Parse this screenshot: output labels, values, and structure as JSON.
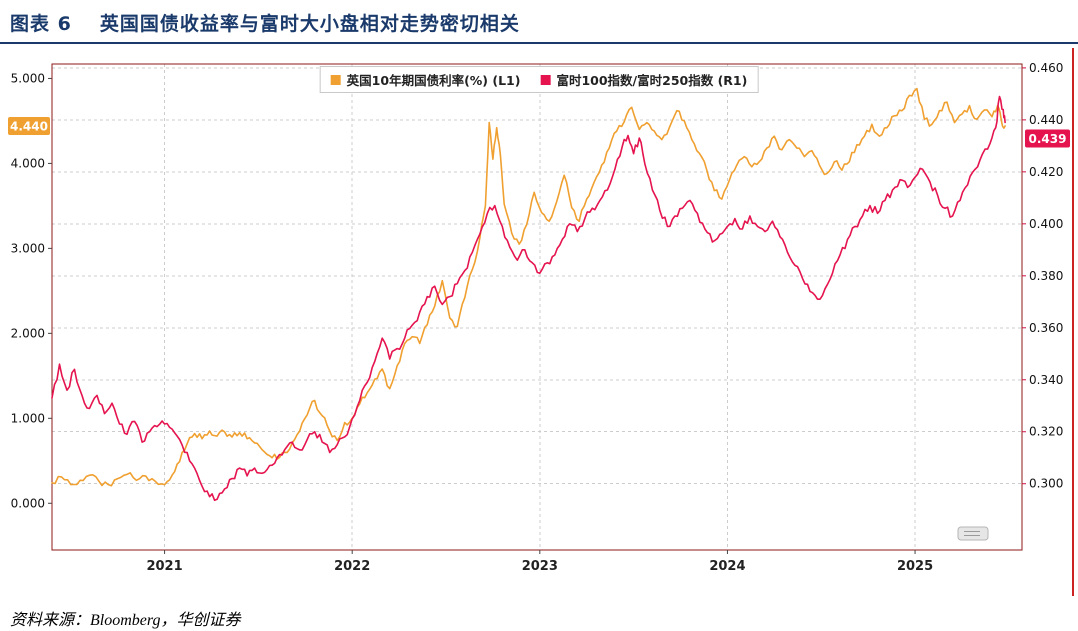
{
  "header": {
    "figure_label": "图表 6",
    "title": "英国国债收益率与富时大小盘相对走势密切相关",
    "accent_color": "#1a3a6b"
  },
  "footer": {
    "source": "资料来源：Bloomberg，华创证券"
  },
  "chart_data": {
    "type": "line",
    "title": "英国国债收益率与富时大小盘相对走势密切相关",
    "grid": "dashed",
    "legend_position": "top-center",
    "legend": [
      {
        "label": "英国10年期国债利率(%) (L1)",
        "color": "#F0A030",
        "axis": "left"
      },
      {
        "label": "富时100指数/富时250指数 (R1)",
        "color": "#E5134E",
        "axis": "right"
      }
    ],
    "x_domain": [
      2020.4,
      2025.57
    ],
    "x_ticks": [
      {
        "pos": 2021,
        "label": "2021"
      },
      {
        "pos": 2022,
        "label": "2022"
      },
      {
        "pos": 2023,
        "label": "2023"
      },
      {
        "pos": 2024,
        "label": "2024"
      },
      {
        "pos": 2025,
        "label": "2025"
      }
    ],
    "left_axis": {
      "min": -0.55,
      "max": 5.17,
      "ticks": [
        0,
        1,
        2,
        3,
        4,
        5
      ],
      "tick_labels": [
        "0.000",
        "1.000",
        "2.000",
        "3.000",
        "4.000",
        "5.000"
      ],
      "last_value": 4.44,
      "last_label": "4.440",
      "color": "#F0A030"
    },
    "right_axis": {
      "min": 0.2745,
      "max": 0.4615,
      "ticks": [
        0.3,
        0.32,
        0.34,
        0.36,
        0.38,
        0.4,
        0.42,
        0.44,
        0.46
      ],
      "tick_labels": [
        "0.300",
        "0.320",
        "0.340",
        "0.360",
        "0.380",
        "0.400",
        "0.420",
        "0.440",
        "0.460"
      ],
      "last_value": 0.439,
      "last_label": "0.439",
      "color": "#E5134E"
    },
    "series": [
      {
        "name": "英国10年期国债利率(%)",
        "axis": "left",
        "color": "#F0A030",
        "points": [
          [
            2020.4,
            0.24
          ],
          [
            2020.45,
            0.31
          ],
          [
            2020.5,
            0.22
          ],
          [
            2020.55,
            0.27
          ],
          [
            2020.6,
            0.33
          ],
          [
            2020.65,
            0.26
          ],
          [
            2020.7,
            0.22
          ],
          [
            2020.75,
            0.29
          ],
          [
            2020.8,
            0.34
          ],
          [
            2020.85,
            0.27
          ],
          [
            2020.9,
            0.32
          ],
          [
            2020.95,
            0.26
          ],
          [
            2021.0,
            0.22
          ],
          [
            2021.04,
            0.33
          ],
          [
            2021.08,
            0.49
          ],
          [
            2021.12,
            0.7
          ],
          [
            2021.16,
            0.82
          ],
          [
            2021.2,
            0.76
          ],
          [
            2021.24,
            0.85
          ],
          [
            2021.28,
            0.79
          ],
          [
            2021.32,
            0.84
          ],
          [
            2021.36,
            0.78
          ],
          [
            2021.4,
            0.83
          ],
          [
            2021.44,
            0.76
          ],
          [
            2021.48,
            0.71
          ],
          [
            2021.52,
            0.63
          ],
          [
            2021.56,
            0.56
          ],
          [
            2021.6,
            0.52
          ],
          [
            2021.64,
            0.6
          ],
          [
            2021.68,
            0.71
          ],
          [
            2021.72,
            0.85
          ],
          [
            2021.76,
            1.04
          ],
          [
            2021.8,
            1.21
          ],
          [
            2021.84,
            1.03
          ],
          [
            2021.88,
            0.85
          ],
          [
            2021.92,
            0.74
          ],
          [
            2021.96,
            0.95
          ],
          [
            2022.0,
            1.0
          ],
          [
            2022.04,
            1.17
          ],
          [
            2022.08,
            1.3
          ],
          [
            2022.12,
            1.46
          ],
          [
            2022.16,
            1.58
          ],
          [
            2022.2,
            1.35
          ],
          [
            2022.24,
            1.62
          ],
          [
            2022.28,
            1.88
          ],
          [
            2022.32,
            1.96
          ],
          [
            2022.36,
            1.88
          ],
          [
            2022.4,
            2.1
          ],
          [
            2022.44,
            2.32
          ],
          [
            2022.48,
            2.62
          ],
          [
            2022.52,
            2.18
          ],
          [
            2022.56,
            2.08
          ],
          [
            2022.6,
            2.42
          ],
          [
            2022.64,
            2.75
          ],
          [
            2022.68,
            3.12
          ],
          [
            2022.71,
            3.5
          ],
          [
            2022.73,
            4.48
          ],
          [
            2022.75,
            4.05
          ],
          [
            2022.77,
            4.42
          ],
          [
            2022.79,
            4.1
          ],
          [
            2022.81,
            3.52
          ],
          [
            2022.85,
            3.18
          ],
          [
            2022.89,
            3.05
          ],
          [
            2022.93,
            3.28
          ],
          [
            2022.97,
            3.66
          ],
          [
            2023.01,
            3.42
          ],
          [
            2023.05,
            3.32
          ],
          [
            2023.09,
            3.55
          ],
          [
            2023.13,
            3.86
          ],
          [
            2023.17,
            3.48
          ],
          [
            2023.21,
            3.32
          ],
          [
            2023.25,
            3.58
          ],
          [
            2023.29,
            3.78
          ],
          [
            2023.33,
            3.98
          ],
          [
            2023.37,
            4.18
          ],
          [
            2023.41,
            4.38
          ],
          [
            2023.45,
            4.49
          ],
          [
            2023.49,
            4.66
          ],
          [
            2023.53,
            4.4
          ],
          [
            2023.57,
            4.48
          ],
          [
            2023.61,
            4.38
          ],
          [
            2023.65,
            4.28
          ],
          [
            2023.69,
            4.42
          ],
          [
            2023.73,
            4.62
          ],
          [
            2023.77,
            4.5
          ],
          [
            2023.81,
            4.28
          ],
          [
            2023.85,
            4.12
          ],
          [
            2023.89,
            3.92
          ],
          [
            2023.93,
            3.68
          ],
          [
            2023.97,
            3.58
          ],
          [
            2024.01,
            3.8
          ],
          [
            2024.05,
            3.98
          ],
          [
            2024.09,
            4.08
          ],
          [
            2024.13,
            3.96
          ],
          [
            2024.17,
            4.02
          ],
          [
            2024.21,
            4.18
          ],
          [
            2024.25,
            4.32
          ],
          [
            2024.29,
            4.16
          ],
          [
            2024.33,
            4.28
          ],
          [
            2024.37,
            4.18
          ],
          [
            2024.41,
            4.08
          ],
          [
            2024.45,
            4.15
          ],
          [
            2024.49,
            3.98
          ],
          [
            2024.53,
            3.88
          ],
          [
            2024.57,
            4.02
          ],
          [
            2024.61,
            3.92
          ],
          [
            2024.65,
            4.02
          ],
          [
            2024.69,
            4.22
          ],
          [
            2024.73,
            4.32
          ],
          [
            2024.77,
            4.46
          ],
          [
            2024.81,
            4.32
          ],
          [
            2024.85,
            4.42
          ],
          [
            2024.89,
            4.56
          ],
          [
            2024.93,
            4.62
          ],
          [
            2024.97,
            4.8
          ],
          [
            2025.01,
            4.88
          ],
          [
            2025.05,
            4.52
          ],
          [
            2025.09,
            4.46
          ],
          [
            2025.13,
            4.62
          ],
          [
            2025.17,
            4.72
          ],
          [
            2025.21,
            4.48
          ],
          [
            2025.25,
            4.58
          ],
          [
            2025.29,
            4.68
          ],
          [
            2025.33,
            4.52
          ],
          [
            2025.37,
            4.63
          ],
          [
            2025.41,
            4.55
          ],
          [
            2025.44,
            4.68
          ],
          [
            2025.46,
            4.5
          ],
          [
            2025.48,
            4.44
          ]
        ]
      },
      {
        "name": "富时100指数/富时250指数",
        "axis": "right",
        "color": "#E5134E",
        "points": [
          [
            2020.4,
            0.333
          ],
          [
            2020.44,
            0.346
          ],
          [
            2020.48,
            0.336
          ],
          [
            2020.52,
            0.344
          ],
          [
            2020.56,
            0.334
          ],
          [
            2020.6,
            0.329
          ],
          [
            2020.64,
            0.334
          ],
          [
            2020.68,
            0.327
          ],
          [
            2020.72,
            0.331
          ],
          [
            2020.76,
            0.323
          ],
          [
            2020.8,
            0.319
          ],
          [
            2020.84,
            0.324
          ],
          [
            2020.88,
            0.316
          ],
          [
            2020.92,
            0.32
          ],
          [
            2020.96,
            0.322
          ],
          [
            2021.0,
            0.323
          ],
          [
            2021.04,
            0.321
          ],
          [
            2021.08,
            0.317
          ],
          [
            2021.12,
            0.312
          ],
          [
            2021.16,
            0.306
          ],
          [
            2021.2,
            0.299
          ],
          [
            2021.24,
            0.295
          ],
          [
            2021.28,
            0.294
          ],
          [
            2021.32,
            0.298
          ],
          [
            2021.36,
            0.302
          ],
          [
            2021.4,
            0.306
          ],
          [
            2021.44,
            0.303
          ],
          [
            2021.48,
            0.306
          ],
          [
            2021.52,
            0.304
          ],
          [
            2021.56,
            0.307
          ],
          [
            2021.6,
            0.31
          ],
          [
            2021.64,
            0.313
          ],
          [
            2021.68,
            0.316
          ],
          [
            2021.72,
            0.313
          ],
          [
            2021.76,
            0.317
          ],
          [
            2021.8,
            0.32
          ],
          [
            2021.84,
            0.316
          ],
          [
            2021.88,
            0.312
          ],
          [
            2021.92,
            0.315
          ],
          [
            2021.96,
            0.318
          ],
          [
            2022.0,
            0.325
          ],
          [
            2022.04,
            0.332
          ],
          [
            2022.08,
            0.339
          ],
          [
            2022.12,
            0.347
          ],
          [
            2022.16,
            0.356
          ],
          [
            2022.2,
            0.348
          ],
          [
            2022.24,
            0.352
          ],
          [
            2022.28,
            0.356
          ],
          [
            2022.32,
            0.361
          ],
          [
            2022.36,
            0.366
          ],
          [
            2022.4,
            0.372
          ],
          [
            2022.44,
            0.376
          ],
          [
            2022.48,
            0.369
          ],
          [
            2022.52,
            0.372
          ],
          [
            2022.56,
            0.377
          ],
          [
            2022.6,
            0.382
          ],
          [
            2022.64,
            0.389
          ],
          [
            2022.68,
            0.396
          ],
          [
            2022.72,
            0.404
          ],
          [
            2022.76,
            0.407
          ],
          [
            2022.8,
            0.399
          ],
          [
            2022.84,
            0.391
          ],
          [
            2022.88,
            0.386
          ],
          [
            2022.92,
            0.39
          ],
          [
            2022.96,
            0.385
          ],
          [
            2023.0,
            0.381
          ],
          [
            2023.04,
            0.385
          ],
          [
            2023.08,
            0.388
          ],
          [
            2023.12,
            0.394
          ],
          [
            2023.16,
            0.4
          ],
          [
            2023.2,
            0.397
          ],
          [
            2023.24,
            0.402
          ],
          [
            2023.28,
            0.406
          ],
          [
            2023.32,
            0.409
          ],
          [
            2023.36,
            0.413
          ],
          [
            2023.4,
            0.421
          ],
          [
            2023.44,
            0.43
          ],
          [
            2023.47,
            0.434
          ],
          [
            2023.5,
            0.427
          ],
          [
            2023.53,
            0.433
          ],
          [
            2023.56,
            0.423
          ],
          [
            2023.6,
            0.413
          ],
          [
            2023.64,
            0.405
          ],
          [
            2023.68,
            0.399
          ],
          [
            2023.72,
            0.403
          ],
          [
            2023.76,
            0.406
          ],
          [
            2023.8,
            0.409
          ],
          [
            2023.84,
            0.404
          ],
          [
            2023.88,
            0.398
          ],
          [
            2023.92,
            0.393
          ],
          [
            2023.96,
            0.396
          ],
          [
            2024.0,
            0.399
          ],
          [
            2024.04,
            0.402
          ],
          [
            2024.08,
            0.398
          ],
          [
            2024.12,
            0.403
          ],
          [
            2024.16,
            0.399
          ],
          [
            2024.2,
            0.397
          ],
          [
            2024.24,
            0.401
          ],
          [
            2024.28,
            0.395
          ],
          [
            2024.32,
            0.389
          ],
          [
            2024.36,
            0.384
          ],
          [
            2024.4,
            0.379
          ],
          [
            2024.44,
            0.374
          ],
          [
            2024.48,
            0.371
          ],
          [
            2024.52,
            0.375
          ],
          [
            2024.56,
            0.381
          ],
          [
            2024.6,
            0.388
          ],
          [
            2024.64,
            0.394
          ],
          [
            2024.68,
            0.399
          ],
          [
            2024.72,
            0.403
          ],
          [
            2024.76,
            0.407
          ],
          [
            2024.8,
            0.404
          ],
          [
            2024.84,
            0.409
          ],
          [
            2024.88,
            0.413
          ],
          [
            2024.92,
            0.417
          ],
          [
            2024.96,
            0.414
          ],
          [
            2025.0,
            0.418
          ],
          [
            2025.04,
            0.421
          ],
          [
            2025.08,
            0.416
          ],
          [
            2025.12,
            0.411
          ],
          [
            2025.16,
            0.406
          ],
          [
            2025.2,
            0.403
          ],
          [
            2025.24,
            0.409
          ],
          [
            2025.28,
            0.415
          ],
          [
            2025.32,
            0.421
          ],
          [
            2025.36,
            0.427
          ],
          [
            2025.4,
            0.431
          ],
          [
            2025.43,
            0.437
          ],
          [
            2025.45,
            0.449
          ],
          [
            2025.47,
            0.444
          ],
          [
            2025.48,
            0.439
          ]
        ]
      }
    ]
  }
}
